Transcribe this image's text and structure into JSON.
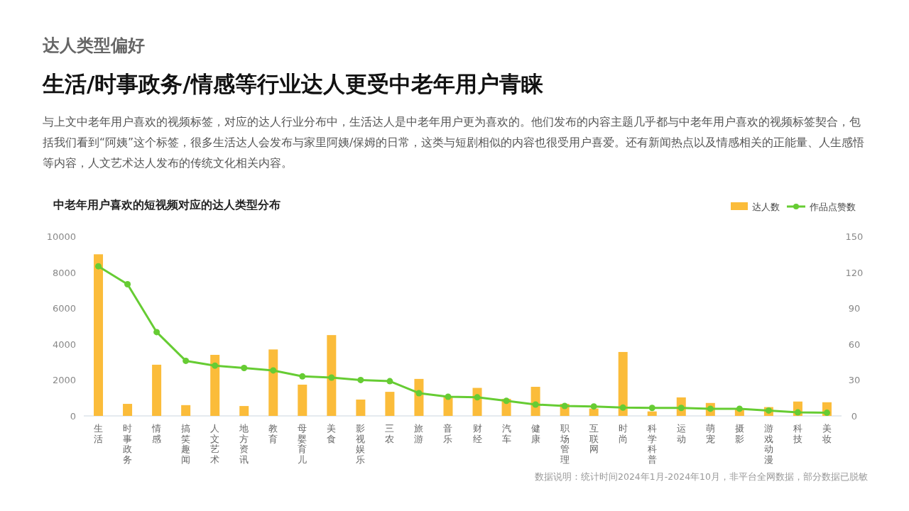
{
  "chart_data": {
    "type": "bar",
    "title": "中老年用户喜欢的短视频对应的达人类型分布",
    "annotations": [
      "达人类型偏好",
      "生活/时事政务/情感等行业达人更受中老年用户青睐",
      "与上文中老年用户喜欢的视频标签，对应的达人行业分布中，生活达人是中老年用户更为喜欢的。他们发布的内容主题几乎都与中老年用户喜欢的视频标签契合，包括我们看到“阿姨”这个标签，很多生活达人会发布与家里阿姨/保姆的日常，这类与短剧相似的内容也很受用户喜爱。还有新闻热点以及情感相关的正能量、人生感悟等内容，人文艺术达人发布的传统文化相关内容。",
      "数据说明：统计时间2024年1月-2024年10月，非平台全网数据，部分数据已脱敏"
    ],
    "categories": [
      "生活",
      "时事政务",
      "情感",
      "搞笑趣闻",
      "人文艺术",
      "地方资讯",
      "教育",
      "母婴育儿",
      "美食",
      "影视娱乐",
      "三农",
      "旅游",
      "音乐",
      "财经",
      "汽车",
      "健康",
      "职场管理",
      "互联网",
      "时尚",
      "科学科普",
      "运动",
      "萌宠",
      "摄影",
      "游戏动漫",
      "科技",
      "美妆"
    ],
    "series": [
      {
        "name": "达人数",
        "color": "#fbbc3a",
        "values": [
          9000,
          670,
          2850,
          600,
          3400,
          550,
          3700,
          1740,
          4500,
          910,
          1340,
          2060,
          1070,
          1560,
          950,
          1620,
          670,
          410,
          3560,
          250,
          1030,
          720,
          400,
          490,
          800,
          760
        ]
      },
      {
        "name": "作品点赞数",
        "type": "line",
        "axis": "y2",
        "color": "#66cc33",
        "marker": "circle",
        "values": [
          125,
          110,
          70,
          46,
          42,
          40,
          38,
          33,
          32,
          30,
          29,
          19,
          16,
          15.5,
          12.6,
          9.5,
          8.3,
          7.9,
          6.9,
          6.7,
          6.7,
          6,
          6,
          4.5,
          2.9,
          2.6
        ]
      }
    ],
    "ylim": [
      0,
      10000
    ],
    "yticks": [
      0,
      2000,
      4000,
      6000,
      8000,
      10000
    ],
    "y2lim": [
      0,
      150
    ],
    "y2ticks": [
      0,
      30,
      60,
      90,
      120,
      150
    ],
    "grid": false,
    "legend": "top right"
  }
}
